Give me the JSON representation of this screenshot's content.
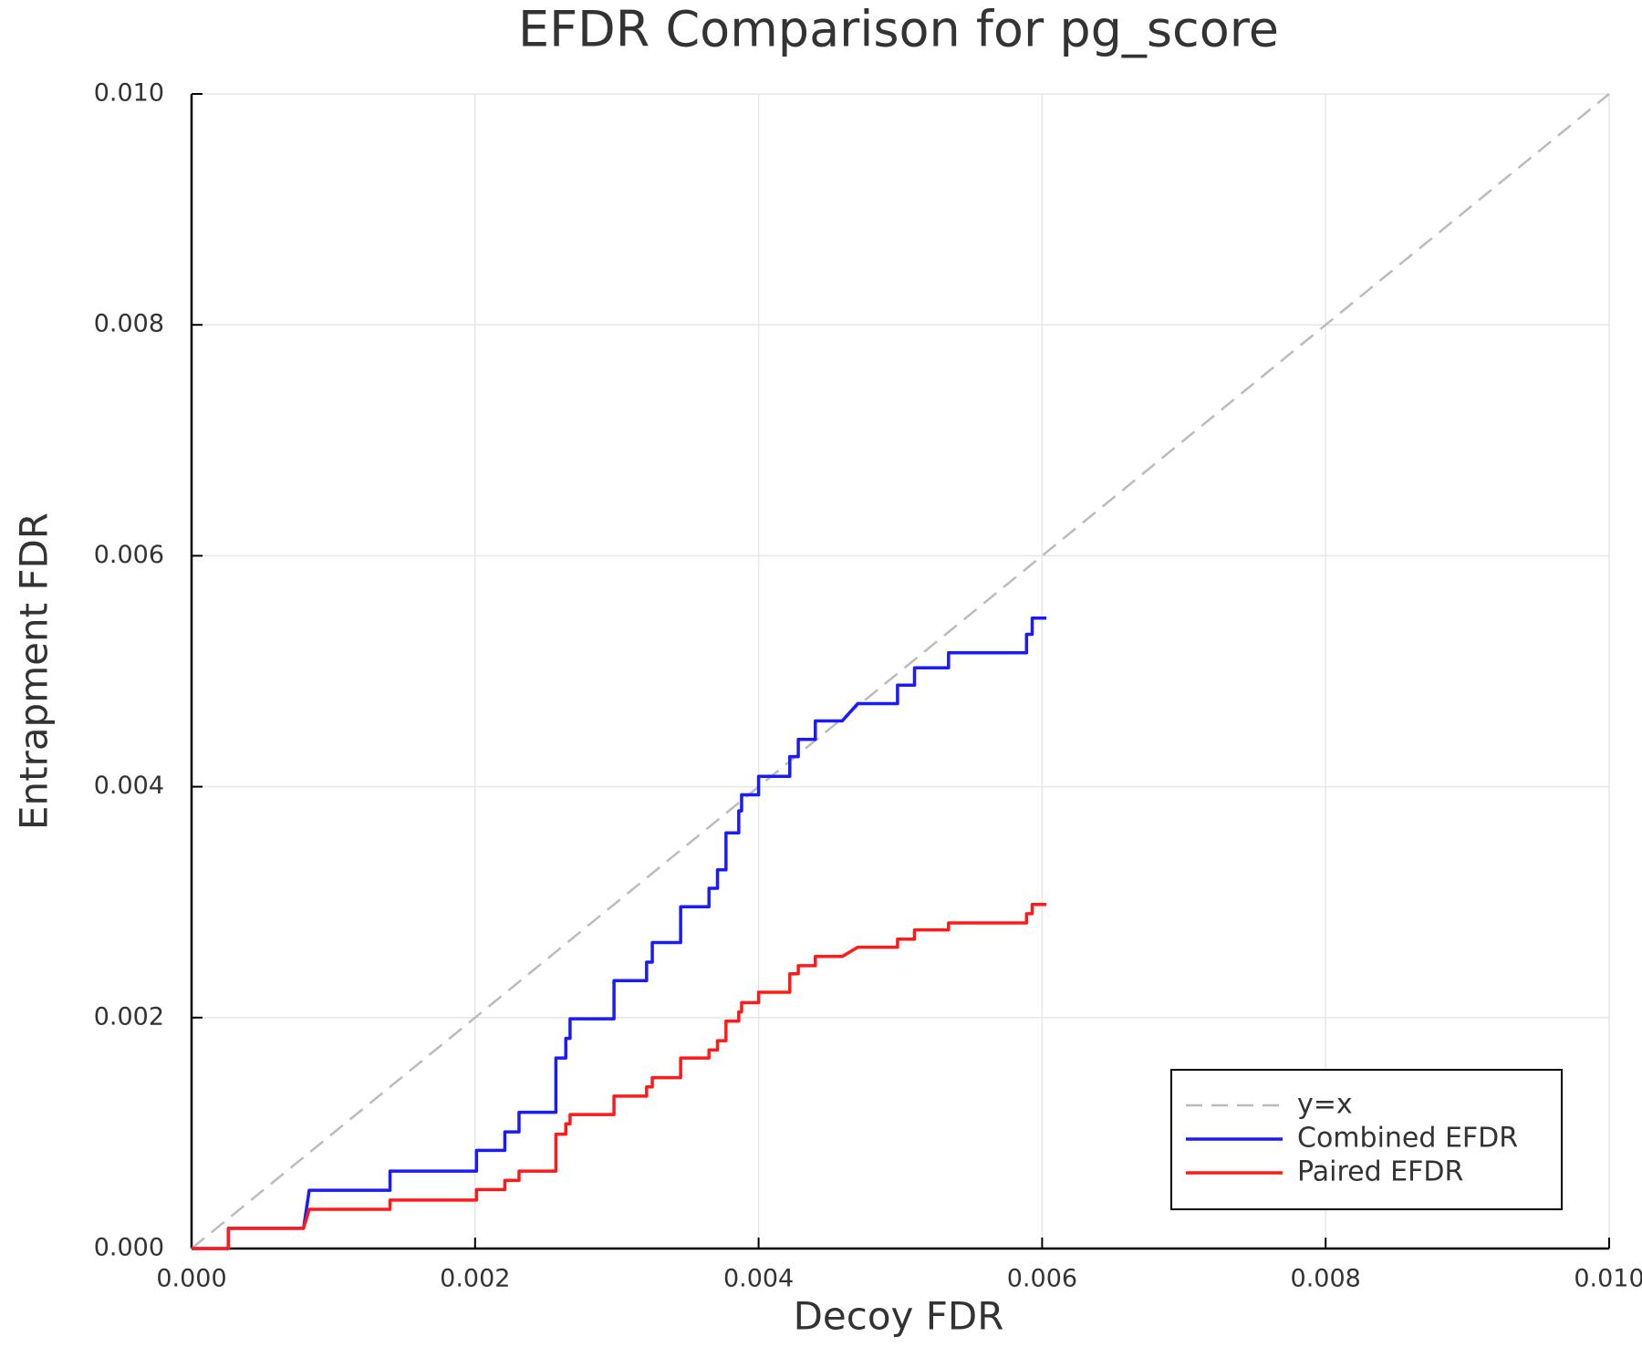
{
  "chart_data": {
    "type": "line",
    "title": "EFDR Comparison for pg_score",
    "x_label": "Decoy FDR",
    "y_label": "Entrapment FDR",
    "xlim": [
      0,
      0.01
    ],
    "ylim": [
      0,
      0.01
    ],
    "xticks": [
      {
        "value": 0,
        "label": "0.000"
      },
      {
        "value": 0.002,
        "label": "0.002"
      },
      {
        "value": 0.004,
        "label": "0.004"
      },
      {
        "value": 0.006,
        "label": "0.006"
      },
      {
        "value": 0.008,
        "label": "0.008"
      },
      {
        "value": 0.01,
        "label": "0.010"
      }
    ],
    "yticks": [
      {
        "value": 0,
        "label": "0.000"
      },
      {
        "value": 0.002,
        "label": "0.002"
      },
      {
        "value": 0.004,
        "label": "0.004"
      },
      {
        "value": 0.006,
        "label": "0.006"
      },
      {
        "value": 0.008,
        "label": "0.008"
      },
      {
        "value": 0.01,
        "label": "0.010"
      }
    ],
    "grid": true,
    "legend": "lower right",
    "x": [
      0,
      0.00026,
      0.00026,
      0.00079,
      0.00083,
      0.0014,
      0.0014,
      0.00201,
      0.00201,
      0.00221,
      0.00221,
      0.00231,
      0.00231,
      0.00257,
      0.00257,
      0.00264,
      0.00264,
      0.00267,
      0.00267,
      0.00298,
      0.00298,
      0.00321,
      0.00321,
      0.00325,
      0.00325,
      0.00345,
      0.00345,
      0.00365,
      0.00365,
      0.00371,
      0.00371,
      0.00377,
      0.00377,
      0.00386,
      0.00386,
      0.00388,
      0.00388,
      0.004,
      0.004,
      0.00422,
      0.00422,
      0.00428,
      0.00428,
      0.0044,
      0.0044,
      0.00459,
      0.0047,
      0.00498,
      0.00498,
      0.0051,
      0.0051,
      0.00534,
      0.00534,
      0.00589,
      0.00589,
      0.00593,
      0.00593,
      0.00603
    ],
    "series": [
      {
        "name": "y=x",
        "color": "#bbbbbb",
        "dashed": true,
        "x": [
          0,
          0.01
        ],
        "values": [
          0,
          0.01
        ]
      },
      {
        "name": "Combined EFDR",
        "color": "#1a1aff",
        "values": [
          0,
          0,
          0.000175,
          0.000175,
          0.000505,
          0.000505,
          0.00067,
          0.00067,
          0.00085,
          0.00085,
          0.00101,
          0.00101,
          0.00118,
          0.00118,
          0.00165,
          0.00165,
          0.00182,
          0.00182,
          0.00199,
          0.00199,
          0.00232,
          0.00232,
          0.00248,
          0.00248,
          0.00265,
          0.00265,
          0.00296,
          0.00296,
          0.00312,
          0.00312,
          0.00328,
          0.00328,
          0.0036,
          0.0036,
          0.00379,
          0.00379,
          0.00393,
          0.00393,
          0.00409,
          0.00409,
          0.00426,
          0.00426,
          0.00441,
          0.00441,
          0.00457,
          0.00457,
          0.00472,
          0.00472,
          0.00488,
          0.00488,
          0.00503,
          0.00503,
          0.00516,
          0.00516,
          0.00532,
          0.00532,
          0.00546,
          0.00546
        ]
      },
      {
        "name": "Paired EFDR",
        "color": "#ff1a1a",
        "values": [
          0,
          0,
          0.000175,
          0.000175,
          0.00034,
          0.00034,
          0.00042,
          0.00042,
          0.00051,
          0.00051,
          0.00059,
          0.00059,
          0.00067,
          0.00067,
          0.00099,
          0.00099,
          0.00108,
          0.00108,
          0.00116,
          0.00116,
          0.00132,
          0.00132,
          0.0014,
          0.0014,
          0.00148,
          0.00148,
          0.00165,
          0.00165,
          0.00172,
          0.00172,
          0.0018,
          0.0018,
          0.00197,
          0.00197,
          0.00205,
          0.00205,
          0.00213,
          0.00213,
          0.00222,
          0.00222,
          0.00238,
          0.00238,
          0.00245,
          0.00245,
          0.00253,
          0.00253,
          0.00261,
          0.00261,
          0.00268,
          0.00268,
          0.00276,
          0.00276,
          0.00282,
          0.00282,
          0.0029,
          0.0029,
          0.00298,
          0.00298
        ]
      }
    ]
  }
}
